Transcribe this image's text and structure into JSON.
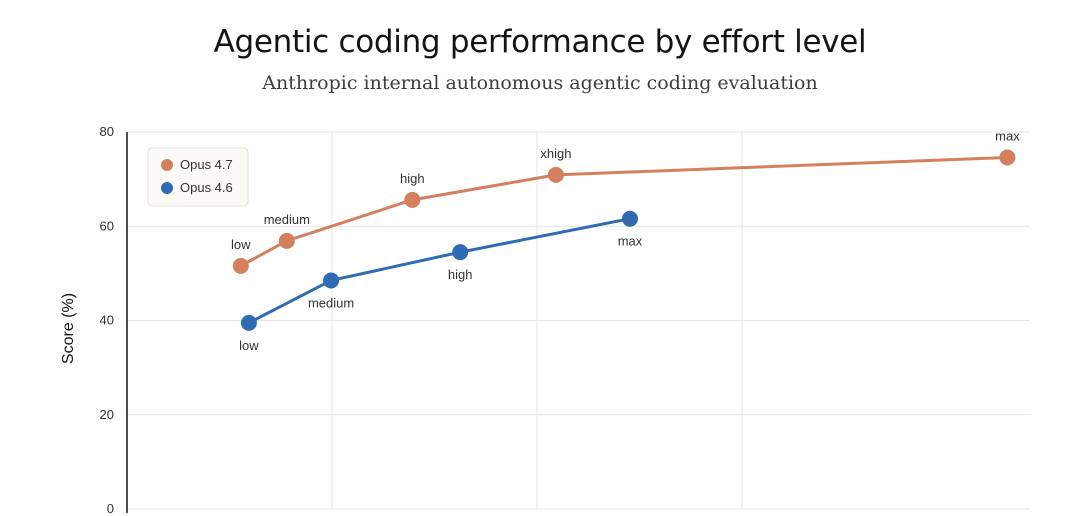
{
  "chart_data": {
    "type": "line",
    "title": "Agentic coding performance by effort level",
    "subtitle": "Anthropic internal autonomous agentic coding evaluation",
    "xlabel": "",
    "ylabel": "Score (%)",
    "ylim": [
      0,
      80
    ],
    "yticks": [
      0,
      20,
      40,
      60,
      80
    ],
    "xlim": [
      0,
      100
    ],
    "grid": true,
    "legend_position": "top-left",
    "series": [
      {
        "name": "Opus 4.7",
        "color": "#d4805e",
        "label_position": "above",
        "points": [
          {
            "x": 12.6,
            "y": 51.6,
            "label": "low"
          },
          {
            "x": 17.7,
            "y": 56.9,
            "label": "medium"
          },
          {
            "x": 31.6,
            "y": 65.6,
            "label": "high"
          },
          {
            "x": 47.5,
            "y": 70.9,
            "label": "xhigh"
          },
          {
            "x": 97.5,
            "y": 74.6,
            "label": "max"
          }
        ]
      },
      {
        "name": "Opus 4.6",
        "color": "#2e6bb3",
        "label_position": "below",
        "points": [
          {
            "x": 13.5,
            "y": 39.5,
            "label": "low"
          },
          {
            "x": 22.6,
            "y": 48.5,
            "label": "medium"
          },
          {
            "x": 36.9,
            "y": 54.5,
            "label": "high"
          },
          {
            "x": 55.7,
            "y": 61.6,
            "label": "max"
          }
        ]
      }
    ]
  }
}
